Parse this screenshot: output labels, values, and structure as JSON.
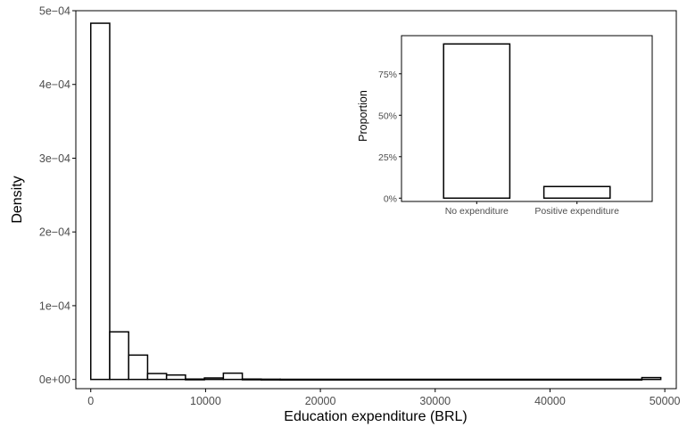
{
  "chart_data": [
    {
      "type": "bar",
      "chart_kind": "histogram",
      "title": "",
      "xlabel": "Education expenditure (BRL)",
      "ylabel": "Density",
      "xlim": [
        -1300,
        51000
      ],
      "ylim": [
        -1.25e-05,
        0.0005
      ],
      "x_ticks": [
        0,
        10000,
        20000,
        30000,
        40000,
        50000
      ],
      "x_tick_labels": [
        "0",
        "10000",
        "20000",
        "30000",
        "40000",
        "50000"
      ],
      "y_ticks": [
        0,
        0.0001,
        0.0002,
        0.0003,
        0.0004,
        0.0005
      ],
      "y_tick_labels": [
        "0e+00",
        "1e−04",
        "2e−04",
        "3e−04",
        "4e−04",
        "5e−04"
      ],
      "grid": false,
      "bin_width": 1650,
      "bins": [
        {
          "x_start": 0,
          "x_end": 1650,
          "density": 0.000483
        },
        {
          "x_start": 1650,
          "x_end": 3300,
          "density": 6.45e-05
        },
        {
          "x_start": 3300,
          "x_end": 4950,
          "density": 3.3e-05
        },
        {
          "x_start": 4950,
          "x_end": 6600,
          "density": 8e-06
        },
        {
          "x_start": 6600,
          "x_end": 8250,
          "density": 6e-06
        },
        {
          "x_start": 8250,
          "x_end": 9900,
          "density": 5e-07
        },
        {
          "x_start": 9900,
          "x_end": 11550,
          "density": 2e-06
        },
        {
          "x_start": 11550,
          "x_end": 13200,
          "density": 8.5e-06
        },
        {
          "x_start": 13200,
          "x_end": 14850,
          "density": 5e-07
        },
        {
          "x_start": 14850,
          "x_end": 16500,
          "density": 3e-07
        },
        {
          "x_start": 16500,
          "x_end": 48000,
          "density": 2e-07
        },
        {
          "x_start": 48000,
          "x_end": 49650,
          "density": 2.5e-06
        }
      ]
    },
    {
      "type": "bar",
      "title": "",
      "xlabel": "",
      "ylabel": "Proportion",
      "categories": [
        "No expenditure",
        "Positive expenditure"
      ],
      "values": [
        0.93,
        0.07
      ],
      "ylim": [
        -0.02,
        0.98
      ],
      "y_ticks": [
        0,
        0.25,
        0.5,
        0.75
      ],
      "y_tick_labels": [
        "0%",
        "25%",
        "50%",
        "75%"
      ],
      "grid": false,
      "placement": "top-right inset"
    }
  ]
}
